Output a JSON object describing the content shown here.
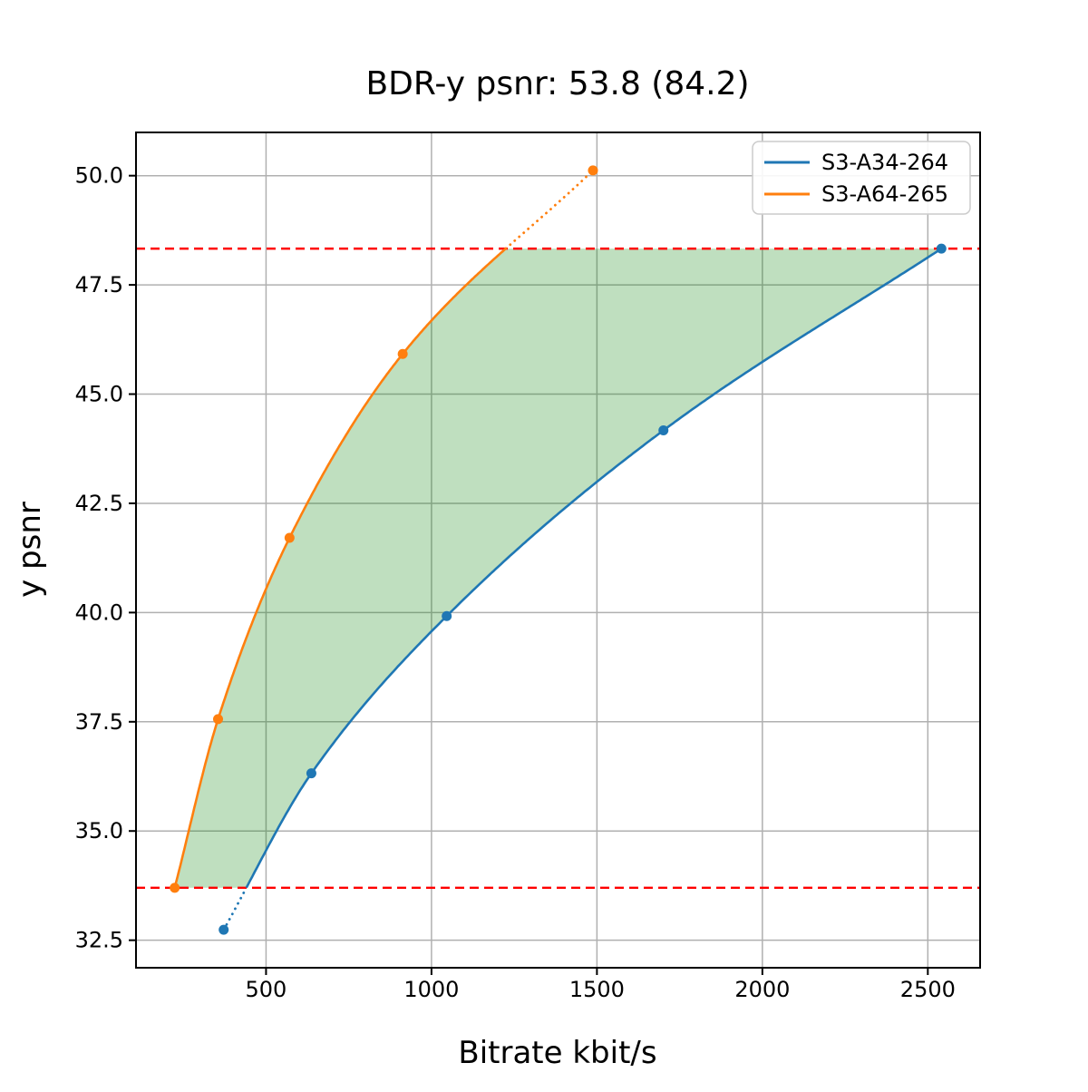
{
  "chart_data": {
    "type": "line",
    "title": "BDR-y psnr: 53.8 (84.2)",
    "xlabel": "Bitrate kbit/s",
    "ylabel": "y psnr",
    "xlim": [
      107,
      2658
    ],
    "ylim": [
      31.87,
      50.99
    ],
    "xticks": [
      500,
      1000,
      1500,
      2000,
      2500
    ],
    "yticks": [
      32.5,
      35.0,
      37.5,
      40.0,
      42.5,
      45.0,
      47.5,
      50.0
    ],
    "grid": true,
    "grid_color": "#b0b0b0",
    "legend_position": "upper right",
    "series": [
      {
        "name": "S3-A34-264",
        "color": "#1f77b4",
        "x": [
          372,
          637,
          1046,
          1701,
          2541
        ],
        "y": [
          32.74,
          36.32,
          39.92,
          44.17,
          48.33
        ],
        "dotted_segment": "below_overlap"
      },
      {
        "name": "S3-A64-265",
        "color": "#ff7f0e",
        "x": [
          224,
          355,
          571,
          913,
          1488
        ],
        "y": [
          33.7,
          37.56,
          41.71,
          45.92,
          50.12
        ],
        "dotted_segment": "above_overlap"
      }
    ],
    "overlap_lines": {
      "style": "dashed",
      "color": "#ff0000",
      "values": [
        33.7,
        48.33
      ]
    },
    "shaded_area": {
      "color": "#008000",
      "opacity": 0.25,
      "between": [
        "S3-A64-265",
        "S3-A34-264"
      ],
      "psnr_range": [
        33.7,
        48.33
      ]
    }
  }
}
